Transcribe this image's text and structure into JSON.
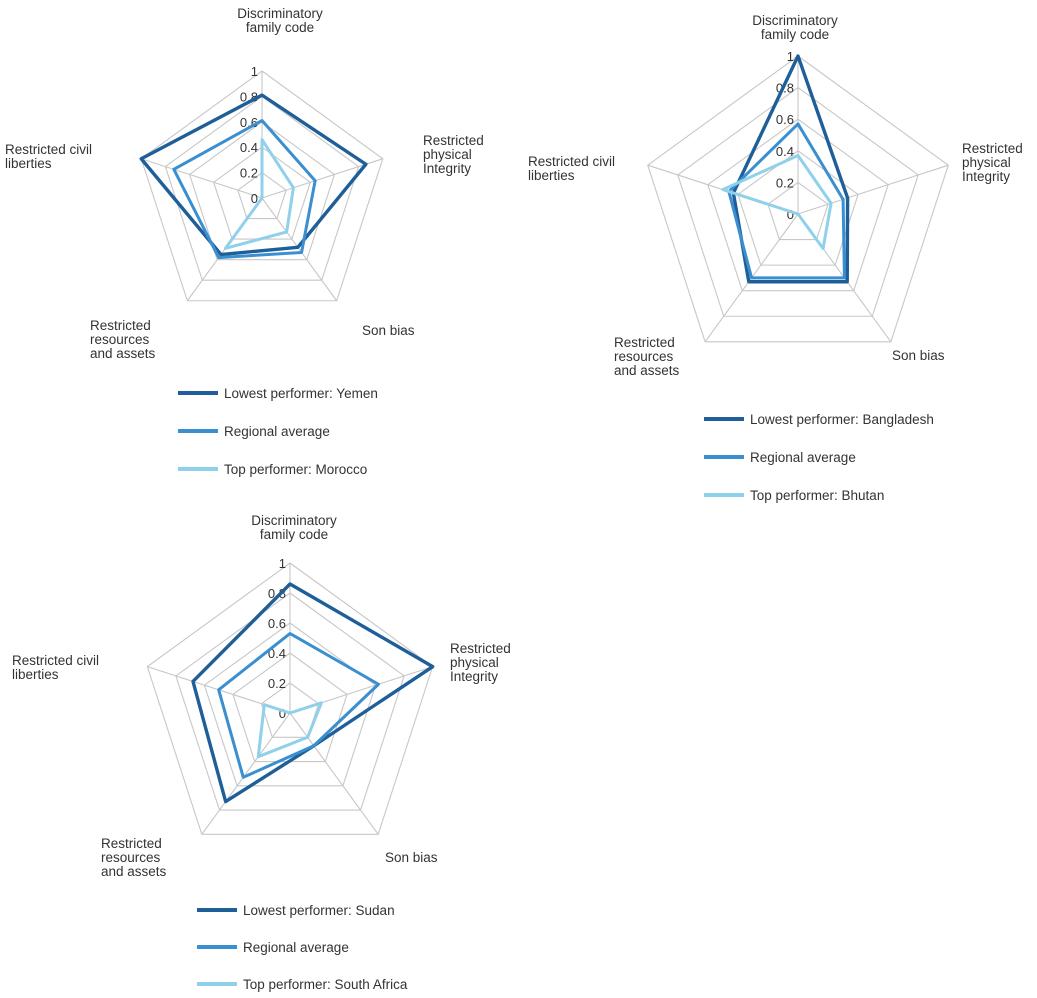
{
  "chart_data": [
    {
      "type": "radar",
      "axes": [
        [
          "Discriminatory",
          "family code"
        ],
        [
          "Restricted",
          "physical",
          "Integrity"
        ],
        [
          "Son bias"
        ],
        [
          "Restricted",
          "resources",
          "and assets"
        ],
        [
          "Restricted civil",
          "liberties"
        ]
      ],
      "ticks": [
        "0",
        "0.2",
        "0.4",
        "0.6",
        "0.8",
        "1"
      ],
      "rlim": [
        0,
        1
      ],
      "series": [
        {
          "name": "Lowest performer: Yemen",
          "color": "#1f5f99",
          "values": [
            0.81,
            0.86,
            0.48,
            0.55,
            1.0
          ]
        },
        {
          "name": "Regional average",
          "color": "#3a8fd0",
          "values": [
            0.61,
            0.44,
            0.53,
            0.58,
            0.73
          ]
        },
        {
          "name": "Top performer: Morocco",
          "color": "#8fd0ea",
          "values": [
            0.46,
            0.26,
            0.33,
            0.49,
            0.0
          ]
        }
      ]
    },
    {
      "type": "radar",
      "axes": [
        [
          "Discriminatory",
          "family code"
        ],
        [
          "Restricted",
          "physical",
          "Integrity"
        ],
        [
          "Son bias"
        ],
        [
          "Restricted",
          "resources",
          "and assets"
        ],
        [
          "Restricted civil",
          "liberties"
        ]
      ],
      "ticks": [
        "0",
        "0.2",
        "0.4",
        "0.6",
        "0.8",
        "1"
      ],
      "rlim": [
        0,
        1
      ],
      "series": [
        {
          "name": "Lowest performer: Bangladesh",
          "color": "#1f5f99",
          "values": [
            1.0,
            0.33,
            0.53,
            0.53,
            0.43
          ]
        },
        {
          "name": "Regional average",
          "color": "#3a8fd0",
          "values": [
            0.57,
            0.3,
            0.5,
            0.5,
            0.46
          ]
        },
        {
          "name": "Top performer: Bhutan",
          "color": "#8fd0ea",
          "values": [
            0.37,
            0.22,
            0.27,
            0.0,
            0.5
          ]
        }
      ]
    },
    {
      "type": "radar",
      "axes": [
        [
          "Discriminatory",
          "family code"
        ],
        [
          "Restricted",
          "physical",
          "Integrity"
        ],
        [
          "Son bias"
        ],
        [
          "Restricted",
          "resources",
          "and assets"
        ],
        [
          "Restricted civil",
          "liberties"
        ]
      ],
      "ticks": [
        "0",
        "0.2",
        "0.4",
        "0.6",
        "0.8",
        "1"
      ],
      "rlim": [
        0,
        1
      ],
      "series": [
        {
          "name": "Lowest performer: Sudan",
          "color": "#1f5f99",
          "values": [
            0.86,
            1.0,
            0.27,
            0.73,
            0.68
          ]
        },
        {
          "name": "Regional average",
          "color": "#3a8fd0",
          "values": [
            0.53,
            0.62,
            0.27,
            0.53,
            0.5
          ]
        },
        {
          "name": "Top performer: South Africa",
          "color": "#8fd0ea",
          "values": [
            0.0,
            0.22,
            0.2,
            0.36,
            0.18
          ]
        }
      ]
    }
  ]
}
